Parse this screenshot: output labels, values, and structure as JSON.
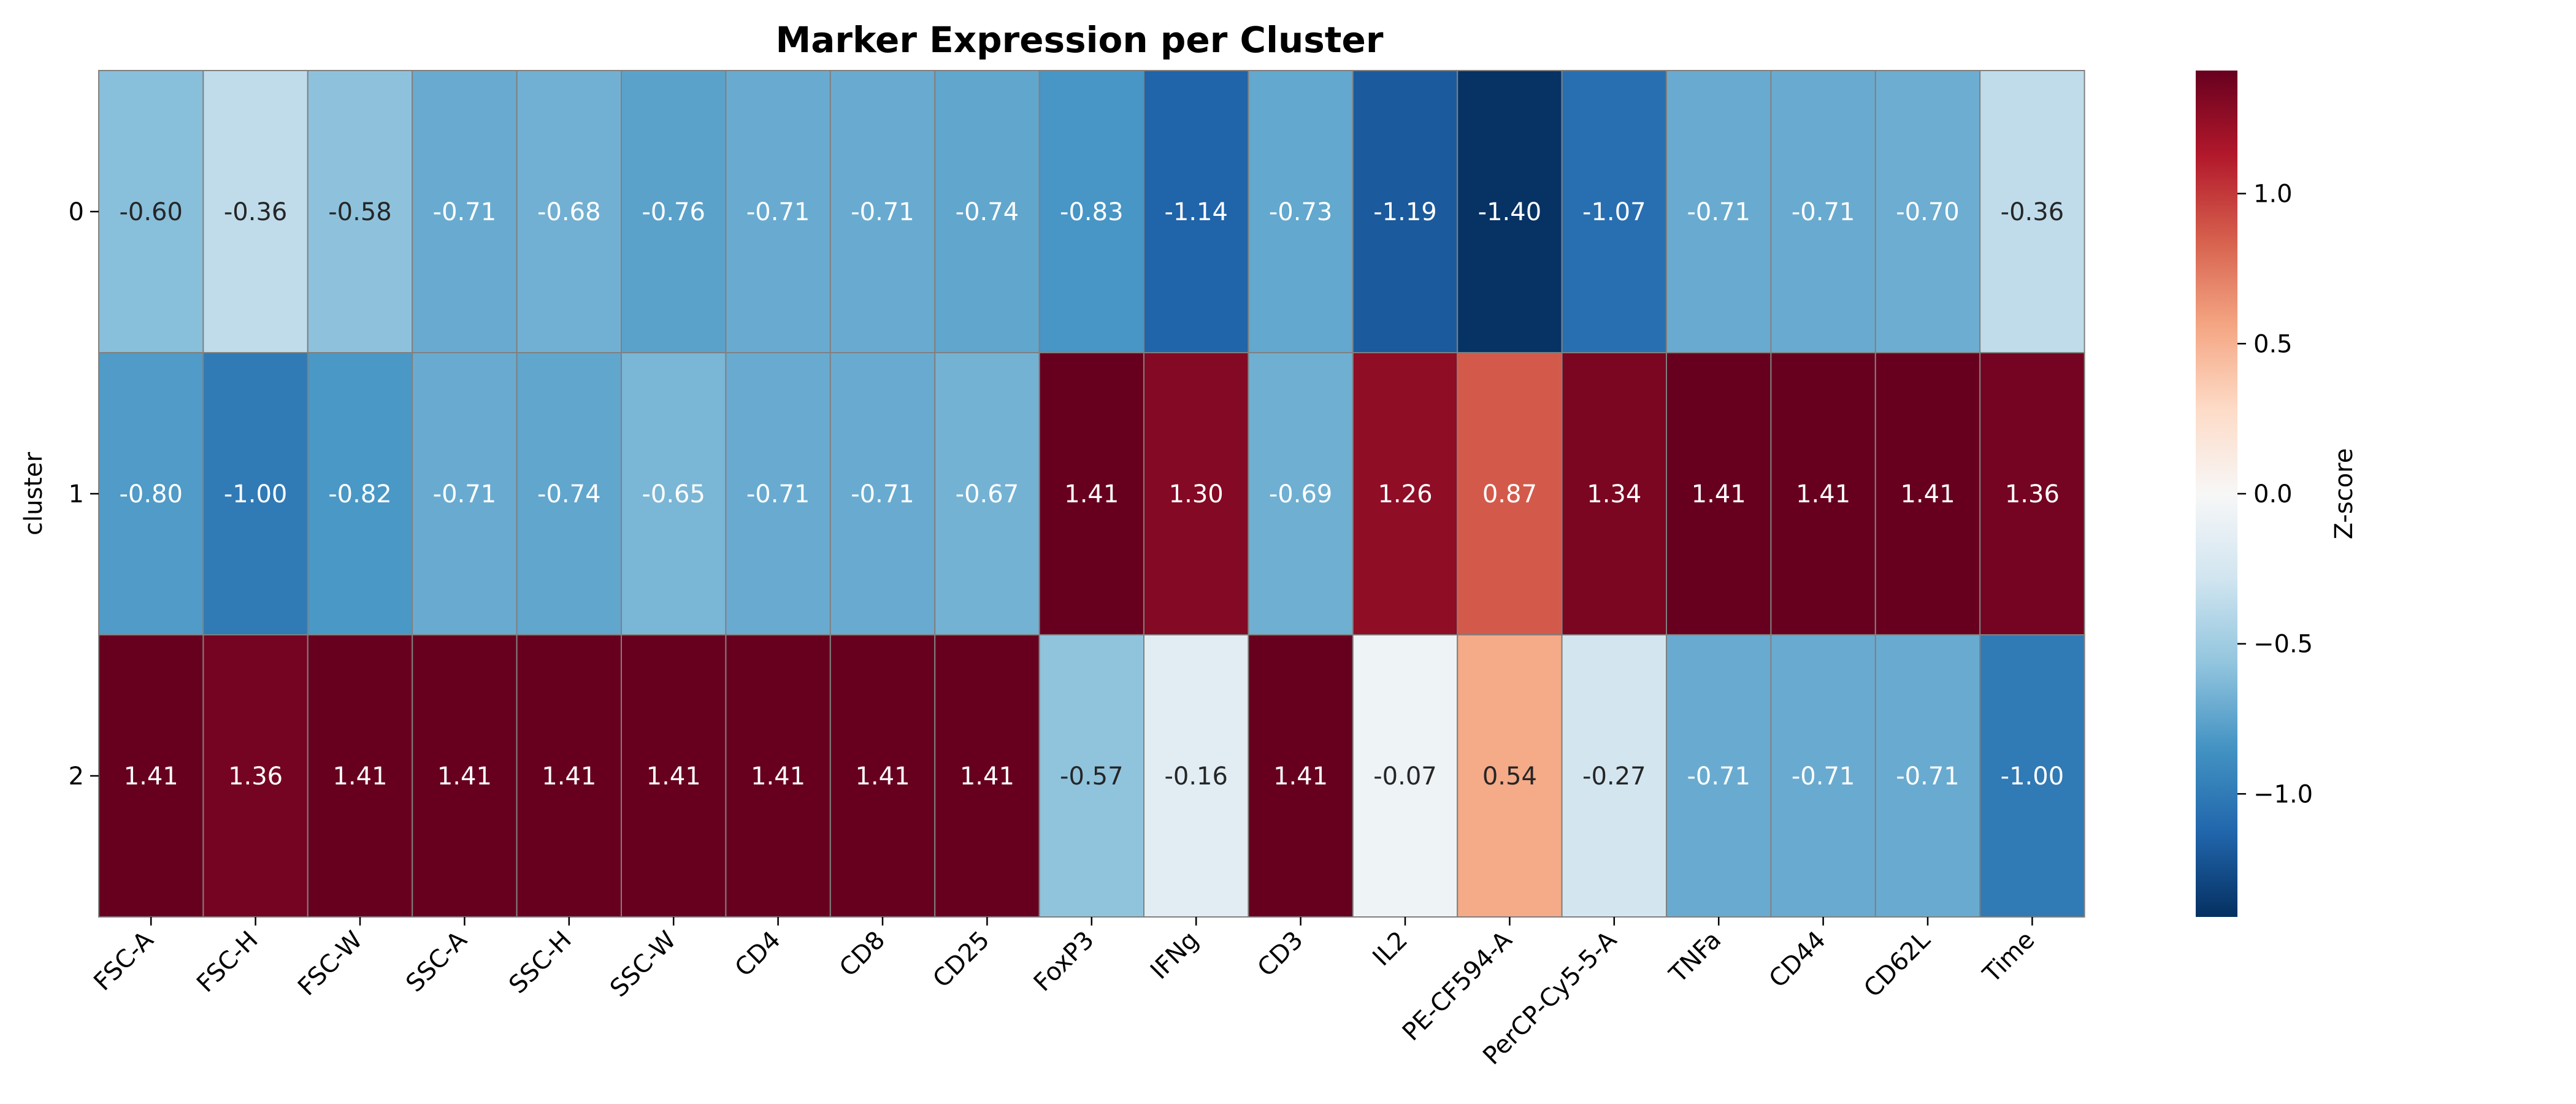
{
  "chart_data": {
    "type": "heatmap",
    "title": "Marker Expression per Cluster",
    "xlabel": "",
    "ylabel": "cluster",
    "columns": [
      "FSC-A",
      "FSC-H",
      "FSC-W",
      "SSC-A",
      "SSC-H",
      "SSC-W",
      "CD4",
      "CD8",
      "CD25",
      "FoxP3",
      "IFNg",
      "CD3",
      "IL2",
      "PE-CF594-A",
      "PerCP-Cy5-5-A",
      "TNFa",
      "CD44",
      "CD62L",
      "Time"
    ],
    "rows": [
      "0",
      "1",
      "2"
    ],
    "values": [
      [
        -0.6,
        -0.36,
        -0.58,
        -0.71,
        -0.68,
        -0.76,
        -0.71,
        -0.71,
        -0.74,
        -0.83,
        -1.14,
        -0.73,
        -1.19,
        -1.4,
        -1.07,
        -0.71,
        -0.71,
        -0.7,
        -0.36
      ],
      [
        -0.8,
        -1.0,
        -0.82,
        -0.71,
        -0.74,
        -0.65,
        -0.71,
        -0.71,
        -0.67,
        1.41,
        1.3,
        -0.69,
        1.26,
        0.87,
        1.34,
        1.41,
        1.41,
        1.41,
        1.36
      ],
      [
        1.41,
        1.36,
        1.41,
        1.41,
        1.41,
        1.41,
        1.41,
        1.41,
        1.41,
        -0.57,
        -0.16,
        1.41,
        -0.07,
        0.54,
        -0.27,
        -0.71,
        -0.71,
        -0.71,
        -1.0
      ]
    ],
    "colormap": "RdBu_r",
    "vmin": -1.41,
    "vmax": 1.41,
    "colorbar": {
      "label": "Z-score",
      "ticks": [
        1.0,
        0.5,
        0.0,
        -0.5,
        -1.0
      ],
      "tick_labels": [
        "1.0",
        "0.5",
        "0.0",
        "−0.5",
        "−1.0"
      ]
    },
    "cell_border_color": "#808080",
    "legend": "colorbar-right"
  }
}
